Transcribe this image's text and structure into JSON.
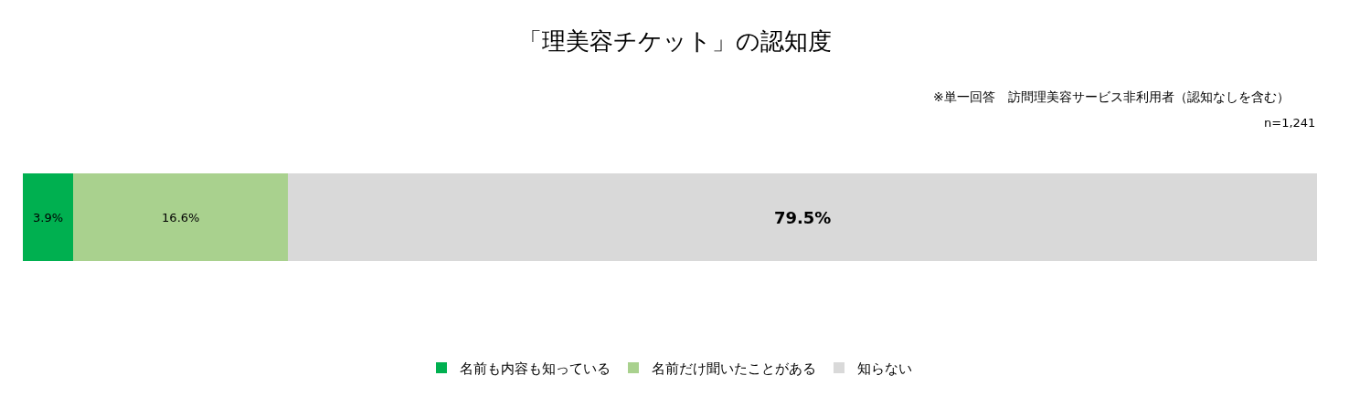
{
  "chart_data": {
    "type": "bar",
    "orientation": "horizontal",
    "stacked": true,
    "title": "「理美容チケット」の認知度",
    "subtitle": "※単一回答　訪問理美容サービス非利用者（認知なしを含む）",
    "annotations": [
      "n=1,241"
    ],
    "categories": [
      null
    ],
    "series": [
      {
        "name": "名前も内容も知っている",
        "color": "#00b050",
        "values": [
          3.9
        ],
        "value_labels": [
          "3.9%"
        ]
      },
      {
        "name": "名前だけ聞いたことがある",
        "color": "#a9d18e",
        "values": [
          16.6
        ],
        "value_labels": [
          "16.6%"
        ]
      },
      {
        "name": "知らない",
        "color": "#d9d9d9",
        "values": [
          79.5
        ],
        "value_labels": [
          "79.5%"
        ]
      }
    ],
    "xlim": [
      0,
      100
    ],
    "tick_labels": false,
    "legend": "bottom"
  }
}
